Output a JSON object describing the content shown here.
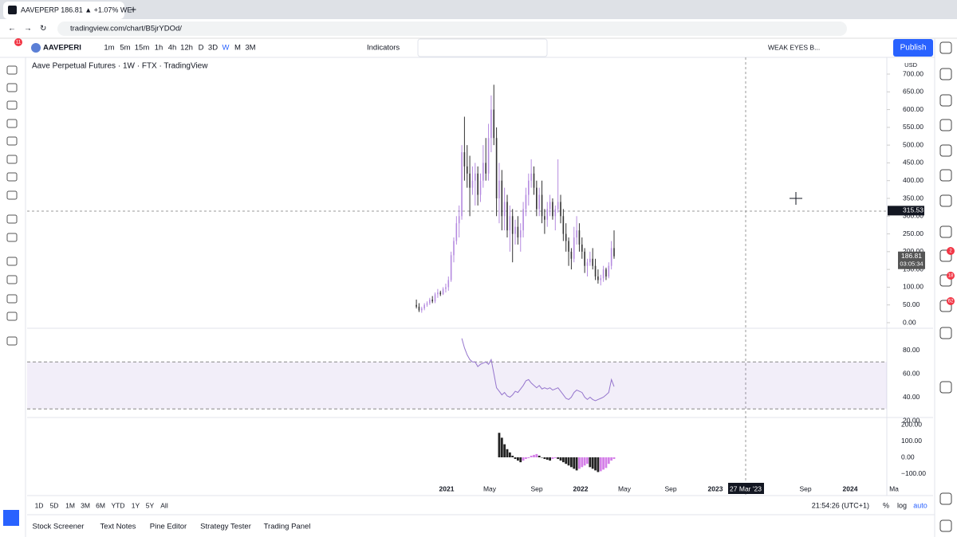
{
  "browser": {
    "tab_title": "AAVEPERP 186.81 ▲ +1.07% WE",
    "url": "tradingview.com/chart/B5jrYDOd/",
    "new_tab": "+"
  },
  "toolbar": {
    "symbol": "AAVEPERI",
    "intervals": [
      "1m",
      "5m",
      "15m",
      "1h",
      "4h",
      "12h",
      "D",
      "3D",
      "W",
      "M",
      "3M"
    ],
    "indicators": "Indicators",
    "layout_name": "WEAK EYES B...",
    "publish": "Publish",
    "alerts_badge": "11"
  },
  "chart": {
    "legend": "Aave Perpetual Futures · 1W · FTX · TradingView",
    "currency": "USD",
    "price_ylim": [
      0,
      700
    ],
    "price_ticks": [
      {
        "value": 0,
        "label": "0.00"
      },
      {
        "value": 50,
        "label": "50.00"
      },
      {
        "value": 100,
        "label": "100.00"
      },
      {
        "value": 150,
        "label": "150.00"
      },
      {
        "value": 200,
        "label": "200.00"
      },
      {
        "value": 250,
        "label": "250.00"
      },
      {
        "value": 300,
        "label": "300.00"
      },
      {
        "value": 350,
        "label": "350.00"
      },
      {
        "value": 400,
        "label": "400.00"
      },
      {
        "value": 450,
        "label": "450.00"
      },
      {
        "value": 500,
        "label": "500.00"
      },
      {
        "value": 550,
        "label": "550.00"
      },
      {
        "value": 600,
        "label": "600.00"
      },
      {
        "value": 650,
        "label": "650.00"
      },
      {
        "value": 700,
        "label": "700.00"
      }
    ],
    "crosshair_price": {
      "value": 315.53,
      "label": "315.53"
    },
    "last_price": {
      "value": 186.81,
      "label": "186.81"
    },
    "countdown": "03:05:34",
    "x_labels": [
      "2021",
      "May",
      "Sep",
      "2022",
      "May",
      "Sep",
      "2023",
      "Sep",
      "2024",
      "Ma"
    ],
    "crosshair_date": "27 Mar '23",
    "candles": [
      [
        50,
        65,
        40,
        45
      ],
      [
        45,
        55,
        30,
        35
      ],
      [
        35,
        45,
        28,
        40
      ],
      [
        40,
        55,
        35,
        50
      ],
      [
        50,
        60,
        45,
        55
      ],
      [
        55,
        70,
        50,
        65
      ],
      [
        65,
        75,
        55,
        60
      ],
      [
        60,
        85,
        55,
        80
      ],
      [
        80,
        95,
        70,
        85
      ],
      [
        85,
        90,
        75,
        80
      ],
      [
        80,
        100,
        78,
        95
      ],
      [
        95,
        110,
        85,
        100
      ],
      [
        100,
        130,
        90,
        120
      ],
      [
        120,
        200,
        115,
        190
      ],
      [
        190,
        240,
        170,
        230
      ],
      [
        230,
        300,
        220,
        280
      ],
      [
        280,
        330,
        240,
        300
      ],
      [
        300,
        500,
        290,
        480
      ],
      [
        480,
        580,
        400,
        440
      ],
      [
        440,
        500,
        380,
        420
      ],
      [
        420,
        470,
        300,
        380
      ],
      [
        380,
        440,
        360,
        400
      ],
      [
        400,
        450,
        330,
        420
      ],
      [
        420,
        440,
        330,
        360
      ],
      [
        360,
        420,
        340,
        400
      ],
      [
        400,
        500,
        380,
        450
      ],
      [
        450,
        520,
        400,
        420
      ],
      [
        420,
        560,
        400,
        520
      ],
      [
        520,
        640,
        480,
        600
      ],
      [
        600,
        670,
        500,
        520
      ],
      [
        520,
        550,
        300,
        350
      ],
      [
        350,
        450,
        280,
        400
      ],
      [
        400,
        430,
        260,
        300
      ],
      [
        300,
        380,
        260,
        340
      ],
      [
        340,
        360,
        240,
        260
      ],
      [
        260,
        330,
        200,
        300
      ],
      [
        300,
        320,
        170,
        250
      ],
      [
        250,
        290,
        220,
        270
      ],
      [
        270,
        300,
        220,
        240
      ],
      [
        240,
        280,
        200,
        260
      ],
      [
        260,
        340,
        240,
        320
      ],
      [
        320,
        380,
        300,
        360
      ],
      [
        360,
        420,
        330,
        400
      ],
      [
        400,
        460,
        380,
        420
      ],
      [
        420,
        440,
        360,
        380
      ],
      [
        380,
        400,
        300,
        320
      ],
      [
        320,
        380,
        300,
        360
      ],
      [
        360,
        400,
        280,
        300
      ],
      [
        300,
        320,
        250,
        290
      ],
      [
        290,
        340,
        270,
        320
      ],
      [
        320,
        360,
        300,
        340
      ],
      [
        340,
        350,
        290,
        300
      ],
      [
        300,
        330,
        260,
        320
      ],
      [
        320,
        460,
        310,
        340
      ],
      [
        340,
        360,
        280,
        300
      ],
      [
        300,
        320,
        230,
        250
      ],
      [
        250,
        280,
        200,
        230
      ],
      [
        230,
        240,
        160,
        200
      ],
      [
        200,
        210,
        150,
        180
      ],
      [
        180,
        270,
        170,
        240
      ],
      [
        240,
        300,
        220,
        260
      ],
      [
        260,
        280,
        200,
        220
      ],
      [
        220,
        240,
        180,
        200
      ],
      [
        200,
        210,
        140,
        160
      ],
      [
        160,
        180,
        130,
        170
      ],
      [
        170,
        200,
        160,
        180
      ],
      [
        180,
        210,
        150,
        160
      ],
      [
        160,
        180,
        120,
        130
      ],
      [
        130,
        150,
        110,
        120
      ],
      [
        120,
        135,
        105,
        125
      ],
      [
        125,
        160,
        115,
        150
      ],
      [
        150,
        155,
        120,
        130
      ],
      [
        130,
        170,
        125,
        160
      ],
      [
        160,
        230,
        150,
        210
      ],
      [
        210,
        260,
        180,
        187
      ]
    ],
    "rsi_ticks": [
      {
        "value": 20,
        "label": "20.00"
      },
      {
        "value": 40,
        "label": "40.00"
      },
      {
        "value": 60,
        "label": "60.00"
      },
      {
        "value": 80,
        "label": "80.00"
      }
    ],
    "rsi_band": [
      30,
      70
    ],
    "rsi": [
      null,
      null,
      null,
      null,
      null,
      null,
      null,
      null,
      null,
      null,
      null,
      null,
      null,
      null,
      null,
      null,
      null,
      90,
      82,
      76,
      72,
      70,
      70,
      66,
      68,
      69,
      70,
      68,
      72,
      60,
      48,
      45,
      42,
      44,
      41,
      40,
      42,
      45,
      44,
      47,
      50,
      54,
      55,
      52,
      50,
      48,
      50,
      47,
      48,
      47,
      48,
      46,
      47,
      48,
      45,
      42,
      39,
      38,
      40,
      44,
      46,
      45,
      44,
      40,
      38,
      40,
      38,
      37,
      38,
      39,
      40,
      42,
      44,
      55,
      49
    ],
    "macd_ticks": [
      {
        "value": 200,
        "label": "200.00"
      },
      {
        "value": 100,
        "label": "100.00"
      },
      {
        "value": 0,
        "label": "0.00"
      },
      {
        "value": -100,
        "label": "−100.00"
      }
    ],
    "macd": [
      null,
      null,
      null,
      null,
      null,
      null,
      null,
      null,
      null,
      null,
      null,
      null,
      null,
      null,
      null,
      null,
      null,
      null,
      null,
      null,
      null,
      null,
      null,
      null,
      null,
      null,
      null,
      null,
      null,
      null,
      null,
      150,
      120,
      80,
      50,
      30,
      10,
      -10,
      -20,
      -30,
      -20,
      -10,
      -5,
      10,
      15,
      20,
      10,
      0,
      -10,
      -15,
      -20,
      -10,
      -5,
      -10,
      -20,
      -30,
      -40,
      -50,
      -60,
      -70,
      -80,
      -70,
      -60,
      -50,
      -40,
      -60,
      -70,
      -80,
      -90,
      -85,
      -75,
      -65,
      -40,
      -20,
      -10
    ]
  },
  "bottom_bar": {
    "ranges": [
      "1D",
      "5D",
      "1M",
      "3M",
      "6M",
      "YTD",
      "1Y",
      "5Y",
      "All"
    ],
    "time": "21:54:26 (UTC+1)",
    "percent": "%",
    "log": "log",
    "auto": "auto"
  },
  "panel_tabs": [
    "Stock Screener",
    "Text Notes",
    "Pine Editor",
    "Strategy Tester",
    "Trading Panel"
  ],
  "side_badges": [
    "2",
    "18",
    "62"
  ]
}
